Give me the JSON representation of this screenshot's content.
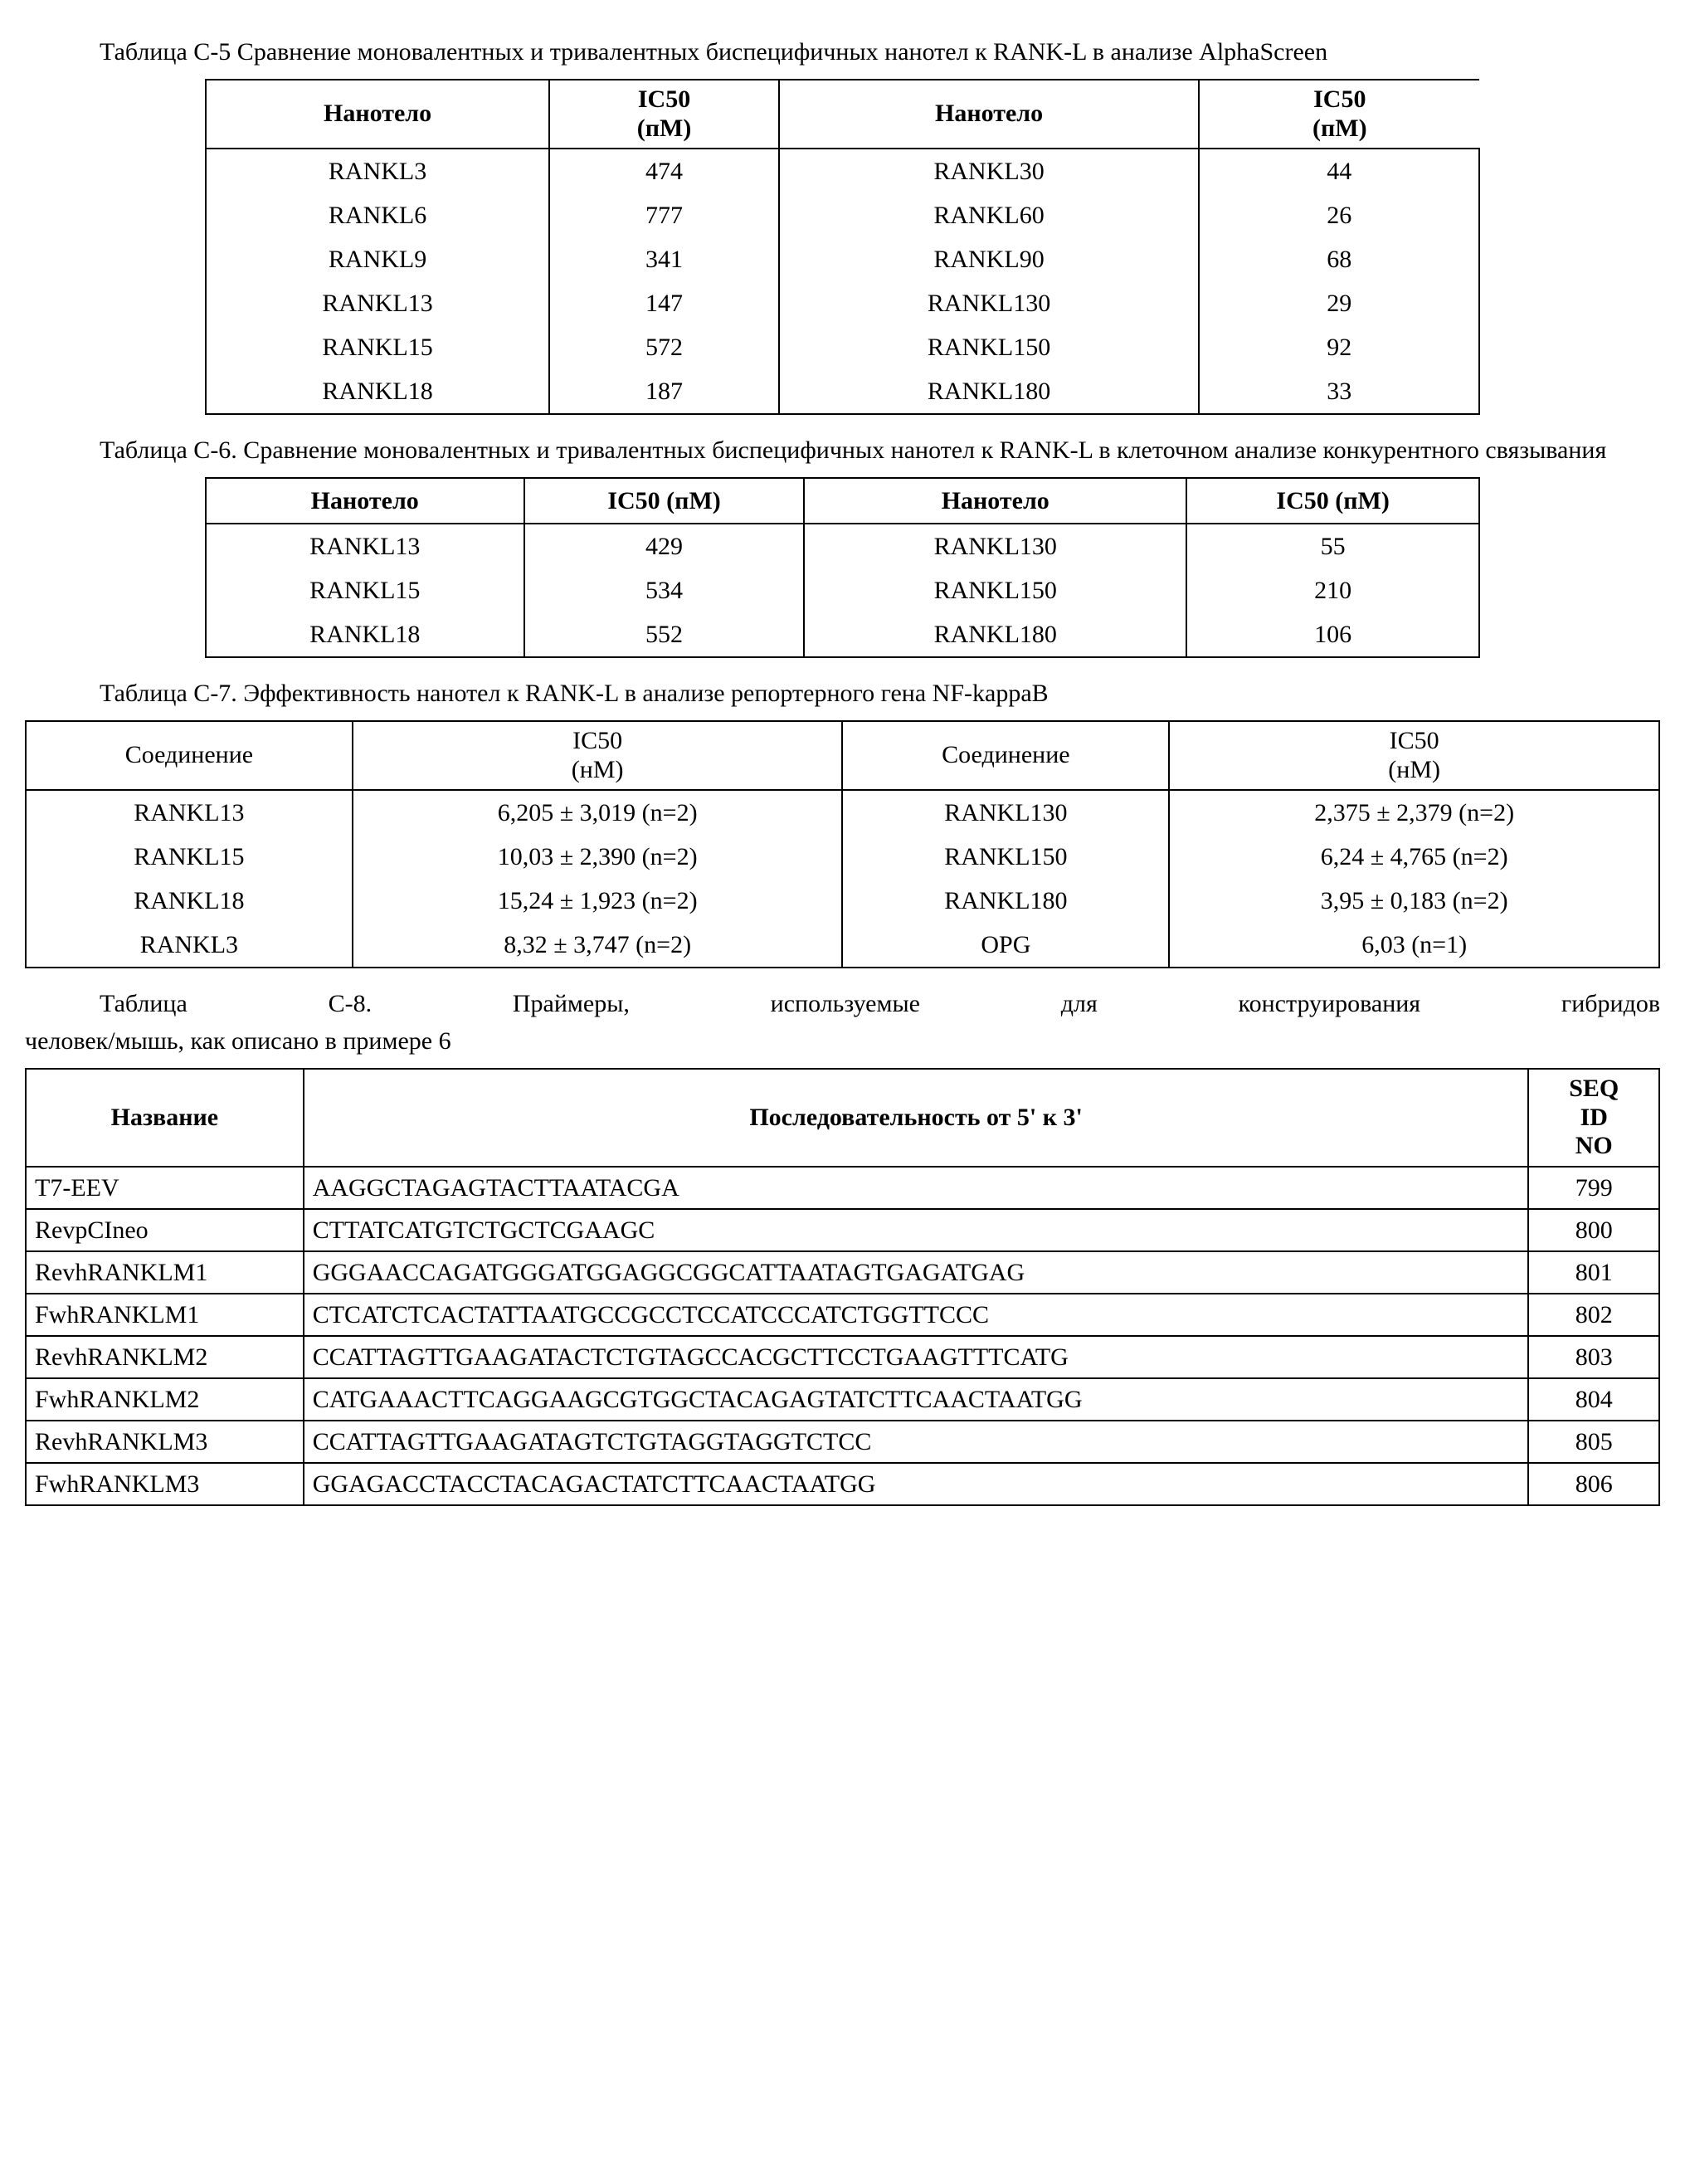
{
  "c5": {
    "caption": "Таблица C-5 Сравнение моновалентных и тривалентных биспецифичных нанотел к RANK-L в анализе AlphaScreen",
    "h1": "Нанотело",
    "h2_l1": "IC50",
    "h2_l2": "(пМ)",
    "h3": "Нанотело",
    "h4_l1": "IC50",
    "h4_l2": "(пМ)",
    "rows": [
      {
        "a": "RANKL3",
        "b": "474",
        "c": "RANKL30",
        "d": "44"
      },
      {
        "a": "RANKL6",
        "b": "777",
        "c": "RANKL60",
        "d": "26"
      },
      {
        "a": "RANKL9",
        "b": "341",
        "c": "RANKL90",
        "d": "68"
      },
      {
        "a": "RANKL13",
        "b": "147",
        "c": "RANKL130",
        "d": "29"
      },
      {
        "a": "RANKL15",
        "b": "572",
        "c": "RANKL150",
        "d": "92"
      },
      {
        "a": "RANKL18",
        "b": "187",
        "c": "RANKL180",
        "d": "33"
      }
    ]
  },
  "c6": {
    "caption": "Таблица C-6. Сравнение моновалентных и тривалентных биспецифичных нанотел к RANK-L в клеточном анализе конкурентного связывания",
    "h1": "Нанотело",
    "h2": "IC50 (пМ)",
    "h3": "Нанотело",
    "h4": "IC50 (пМ)",
    "rows": [
      {
        "a": "RANKL13",
        "b": "429",
        "c": "RANKL130",
        "d": "55"
      },
      {
        "a": "RANKL15",
        "b": "534",
        "c": "RANKL150",
        "d": "210"
      },
      {
        "a": "RANKL18",
        "b": "552",
        "c": "RANKL180",
        "d": "106"
      }
    ]
  },
  "c7": {
    "caption": "Таблица C-7. Эффективность нанотел к RANK-L в анализе репортерного гена NF-kappaB",
    "h1": "Соединение",
    "h2_l1": "IC50",
    "h2_l2": "(нМ)",
    "h3": "Соединение",
    "h4_l1": "IC50",
    "h4_l2": "(нМ)",
    "rows": [
      {
        "a": "RANKL13",
        "b": "6,205 ± 3,019 (n=2)",
        "c": "RANKL130",
        "d": "2,375 ± 2,379 (n=2)"
      },
      {
        "a": "RANKL15",
        "b": "10,03 ± 2,390 (n=2)",
        "c": "RANKL150",
        "d": "6,24 ± 4,765 (n=2)"
      },
      {
        "a": "RANKL18",
        "b": "15,24 ± 1,923 (n=2)",
        "c": "RANKL180",
        "d": "3,95 ± 0,183 (n=2)"
      },
      {
        "a": "RANKL3",
        "b": "8,32 ± 3,747 (n=2)",
        "c": "OPG",
        "d": "6,03 (n=1)"
      }
    ]
  },
  "c8": {
    "caption_words": [
      "Таблица",
      "C-8.",
      "Праймеры,",
      "используемые",
      "для",
      "конструирования",
      "гибридов"
    ],
    "caption_line2": "человек/мышь, как описано в примере 6",
    "h1": "Название",
    "h2": "Последовательность от 5' к 3'",
    "h3_l1": "SEQ",
    "h3_l2": "ID",
    "h3_l3": "NO",
    "rows": [
      {
        "a": "T7-EEV",
        "b": "AAGGCTAGAGTACTTAATACGA",
        "c": "799"
      },
      {
        "a": "RevpCIneo",
        "b": "CTTATCATGTCTGCTCGAAGC",
        "c": "800"
      },
      {
        "a": "RevhRANKLM1",
        "b": "GGGAACCAGATGGGATGGAGGCGGCATTAATAGTGAGATGAG",
        "c": "801"
      },
      {
        "a": "FwhRANKLM1",
        "b": "CTCATCTCACTATTAATGCCGCCTCCATCCCATCTGGTTCCC",
        "c": "802"
      },
      {
        "a": "RevhRANKLM2",
        "b": "CCATTAGTTGAAGATACTCTGTAGCCACGCTTCCTGAAGTTTCATG",
        "c": "803"
      },
      {
        "a": "FwhRANKLM2",
        "b": "CATGAAACTTCAGGAAGCGTGGCTACAGAGTATCTTCAACTAATGG",
        "c": "804"
      },
      {
        "a": "RevhRANKLM3",
        "b": "CCATTAGTTGAAGATAGTCTGTAGGTAGGTCTCC",
        "c": "805"
      },
      {
        "a": "FwhRANKLM3",
        "b": "GGAGACCTACCTACAGACTATCTTCAACTAATGG",
        "c": "806"
      }
    ]
  }
}
